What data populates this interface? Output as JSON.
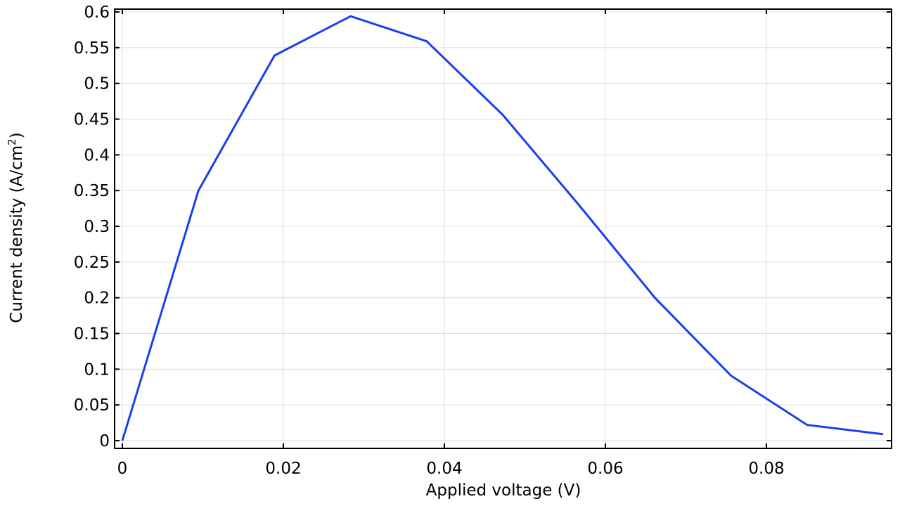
{
  "chart_data": {
    "type": "line",
    "title": "",
    "xlabel": "Applied voltage (V)",
    "ylabel": "Current density (A/cm²)",
    "ylabel_base": "Current density (A/cm",
    "ylabel_sup": "2",
    "ylabel_tail": ")",
    "xlim": [
      -0.00095,
      0.0952
    ],
    "ylim": [
      -0.01,
      0.611
    ],
    "grid": true,
    "legend": null,
    "x_ticks": [
      0,
      0.02,
      0.04,
      0.06,
      0.08
    ],
    "x_tick_labels": [
      "0",
      "0.02",
      "0.04",
      "0.06",
      "0.08"
    ],
    "y_ticks": [
      0,
      0.05,
      0.1,
      0.15,
      0.2,
      0.25,
      0.3,
      0.35,
      0.4,
      0.45,
      0.5,
      0.55,
      0.6
    ],
    "y_tick_labels": [
      "0",
      "0.05",
      "0.1",
      "0.15",
      "0.2",
      "0.25",
      "0.3",
      "0.35",
      "0.4",
      "0.45",
      "0.5",
      "0.55",
      "0.6"
    ],
    "series": [
      {
        "name": "Current density",
        "color": "#1a3ef0",
        "x": [
          0,
          0.00945,
          0.0189,
          0.02835,
          0.0378,
          0.04725,
          0.0567,
          0.06615,
          0.0756,
          0.08505,
          0.0945
        ],
        "y": [
          0.0,
          0.35,
          0.539,
          0.594,
          0.559,
          0.456,
          0.33,
          0.2,
          0.091,
          0.022,
          0.009
        ]
      }
    ]
  },
  "colors": {
    "line": "#1a3ef0",
    "grid": "#dcdcdc",
    "axis": "#000000",
    "background": "#ffffff"
  }
}
